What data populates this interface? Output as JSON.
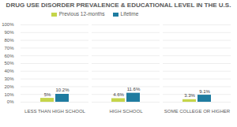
{
  "chart_data": {
    "type": "bar",
    "title": "DRUG USE DISORDER PREVALENCE & EDUCATIONAL LEVEL IN THE U.S.",
    "categories": [
      "LESS THAN HIGH SCHOOL",
      "HIGH SCHOOL",
      "SOME COLLEGE OR HIGHER"
    ],
    "series": [
      {
        "name": "Previous 12-months",
        "color": "#c5d54a",
        "values": [
          5,
          4.6,
          3.3
        ],
        "value_labels": [
          "5%",
          "4.6%",
          "3.3%"
        ]
      },
      {
        "name": "Lifetime",
        "color": "#1f7ca0",
        "values": [
          10.2,
          11.6,
          9.1
        ],
        "value_labels": [
          "10.2%",
          "11.6%",
          "9.1%"
        ]
      }
    ],
    "ylim": [
      0,
      100
    ],
    "yticks": [
      {
        "value": 0,
        "label": "0%"
      },
      {
        "value": 10,
        "label": "10%"
      },
      {
        "value": 20,
        "label": "20%"
      },
      {
        "value": 30,
        "label": "30%"
      },
      {
        "value": 40,
        "label": "40%"
      },
      {
        "value": 50,
        "label": "50%"
      },
      {
        "value": 60,
        "label": "60%"
      },
      {
        "value": 70,
        "label": "70%"
      },
      {
        "value": 80,
        "label": "80%"
      },
      {
        "value": 90,
        "label": "90%"
      },
      {
        "value": 100,
        "label": "100%"
      }
    ],
    "grid": true,
    "data_labels": true,
    "legend": "top"
  }
}
